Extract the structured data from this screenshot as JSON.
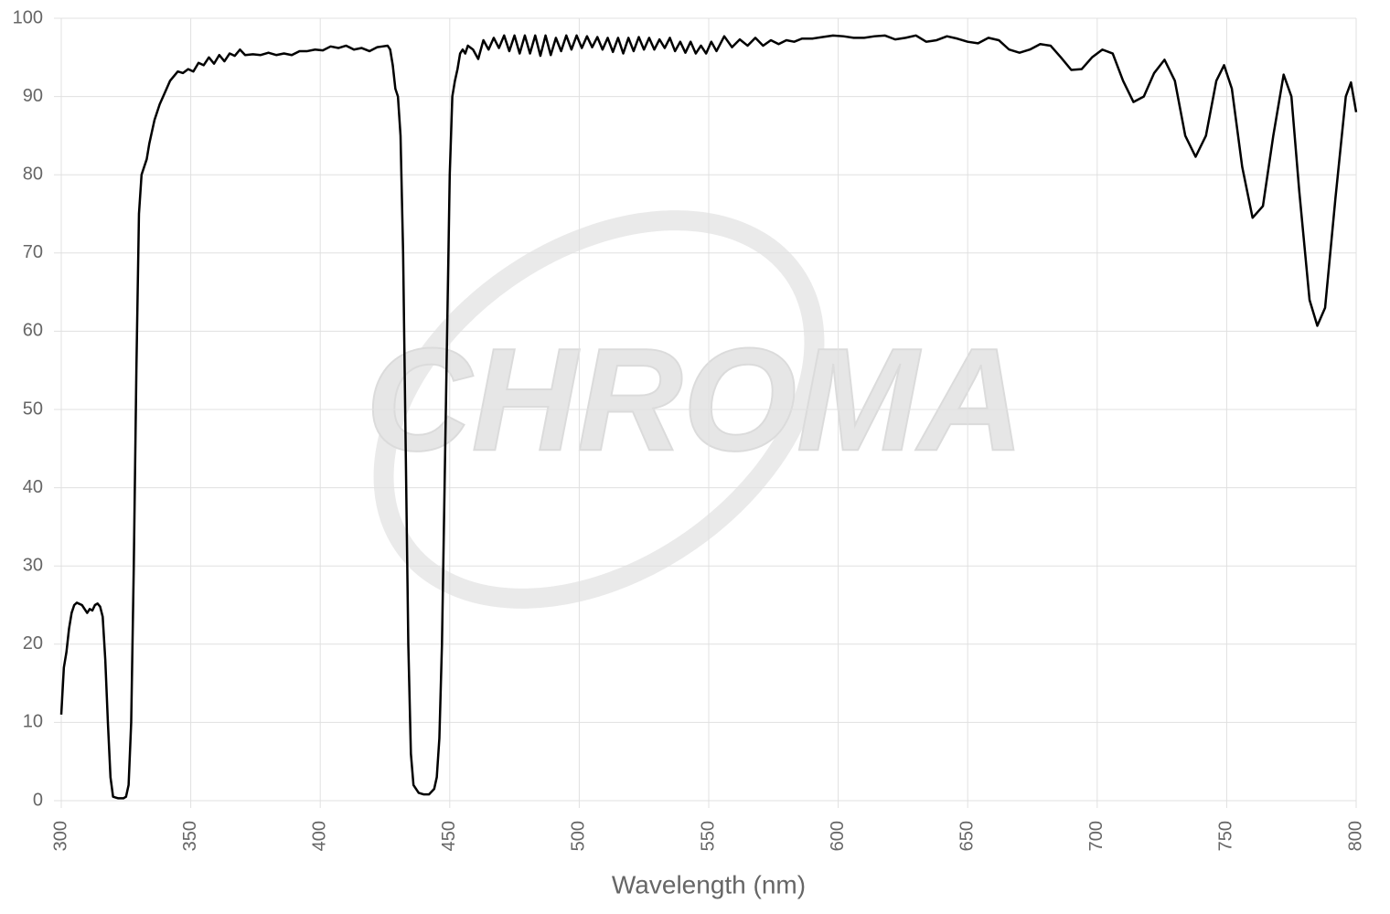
{
  "chart_data": {
    "type": "line",
    "watermark": "CHROMA",
    "x_label": "Wavelength (nm)",
    "x": [
      300,
      301,
      302,
      303,
      304,
      305,
      306,
      308,
      309,
      310,
      311,
      312,
      313,
      314,
      315,
      316,
      317,
      318,
      319,
      320,
      322,
      324,
      325,
      326,
      327,
      328,
      329,
      330,
      331,
      332,
      333,
      334,
      336,
      338,
      340,
      342,
      345,
      347,
      349,
      351,
      353,
      355,
      357,
      359,
      361,
      363,
      365,
      367,
      369,
      371,
      374,
      377,
      380,
      383,
      386,
      389,
      392,
      395,
      398,
      401,
      404,
      407,
      410,
      413,
      416,
      419,
      422,
      424,
      426,
      427,
      428,
      429,
      430,
      431,
      432,
      433,
      434,
      435,
      436,
      438,
      440,
      442,
      444,
      445,
      446,
      447,
      448,
      449,
      450,
      451,
      452,
      453,
      454,
      455,
      456,
      457,
      459,
      461,
      463,
      465,
      467,
      469,
      471,
      473,
      475,
      477,
      479,
      481,
      483,
      485,
      487,
      489,
      491,
      493,
      495,
      497,
      499,
      501,
      503,
      505,
      507,
      509,
      511,
      513,
      515,
      517,
      519,
      521,
      523,
      525,
      527,
      529,
      531,
      533,
      535,
      537,
      539,
      541,
      543,
      545,
      547,
      549,
      551,
      553,
      556,
      559,
      562,
      565,
      568,
      571,
      574,
      577,
      580,
      583,
      586,
      590,
      594,
      598,
      602,
      606,
      610,
      614,
      618,
      622,
      626,
      630,
      634,
      638,
      642,
      646,
      650,
      654,
      658,
      662,
      666,
      670,
      674,
      678,
      682,
      686,
      690,
      694,
      698,
      702,
      706,
      710,
      714,
      718,
      722,
      726,
      730,
      734,
      738,
      742,
      746,
      749,
      752,
      756,
      760,
      764,
      768,
      772,
      775,
      778,
      782,
      785,
      788,
      792,
      796,
      798,
      800
    ],
    "series": [
      {
        "color": "#000000",
        "values": [
          11,
          17,
          19,
          22,
          24,
          25,
          25.3,
          25,
          24.5,
          24,
          24.5,
          24.3,
          25,
          25.2,
          24.8,
          23.5,
          18,
          10,
          3,
          0.5,
          0.3,
          0.3,
          0.5,
          2,
          10,
          30,
          55,
          75,
          80,
          81,
          82,
          84,
          87,
          89,
          90.5,
          92,
          93.2,
          93,
          93.5,
          93.2,
          94.3,
          94,
          95,
          94.2,
          95.3,
          94.5,
          95.5,
          95.2,
          96,
          95.3,
          95.4,
          95.3,
          95.6,
          95.3,
          95.5,
          95.3,
          95.8,
          95.8,
          96,
          95.9,
          96.4,
          96.2,
          96.5,
          96,
          96.2,
          95.8,
          96.3,
          96.4,
          96.5,
          96,
          94,
          91,
          90,
          85,
          70,
          45,
          20,
          6,
          2,
          1,
          0.8,
          0.8,
          1.5,
          3,
          8,
          20,
          40,
          60,
          80,
          90,
          92,
          93.5,
          95.5,
          96,
          95.5,
          96.5,
          96,
          94.8,
          97.2,
          96,
          97.5,
          96.2,
          97.8,
          95.8,
          97.8,
          95.5,
          97.8,
          95.5,
          97.8,
          95.2,
          97.8,
          95.3,
          97.5,
          95.8,
          97.8,
          96,
          97.8,
          96.2,
          97.7,
          96.3,
          97.6,
          96,
          97.5,
          95.7,
          97.5,
          95.5,
          97.5,
          95.8,
          97.6,
          96,
          97.5,
          96,
          97.3,
          96.2,
          97.5,
          95.8,
          97,
          95.6,
          97,
          95.5,
          96.5,
          95.5,
          97,
          95.8,
          97.7,
          96.3,
          97.3,
          96.5,
          97.5,
          96.5,
          97.2,
          96.7,
          97.2,
          97,
          97.4,
          97.4,
          97.6,
          97.8,
          97.7,
          97.5,
          97.5,
          97.7,
          97.8,
          97.3,
          97.5,
          97.8,
          97,
          97.2,
          97.7,
          97.4,
          97,
          96.8,
          97.5,
          97.2,
          96,
          95.6,
          96,
          96.7,
          96.5,
          95,
          93.4,
          93.5,
          95,
          96,
          95.5,
          92,
          89.3,
          90,
          93,
          94.7,
          92,
          85,
          82.3,
          85,
          92,
          94,
          91,
          81,
          74.5,
          76,
          85,
          92.8,
          90,
          78,
          64,
          60.7,
          63,
          77,
          90,
          91.8,
          88
        ]
      }
    ],
    "xlim": [
      300,
      800
    ],
    "ylim": [
      0,
      100
    ],
    "xticks": [
      300,
      350,
      400,
      450,
      500,
      550,
      600,
      650,
      700,
      750,
      800
    ],
    "yticks": [
      0,
      10,
      20,
      30,
      40,
      50,
      60,
      70,
      80,
      90,
      100
    ],
    "grid": true
  }
}
